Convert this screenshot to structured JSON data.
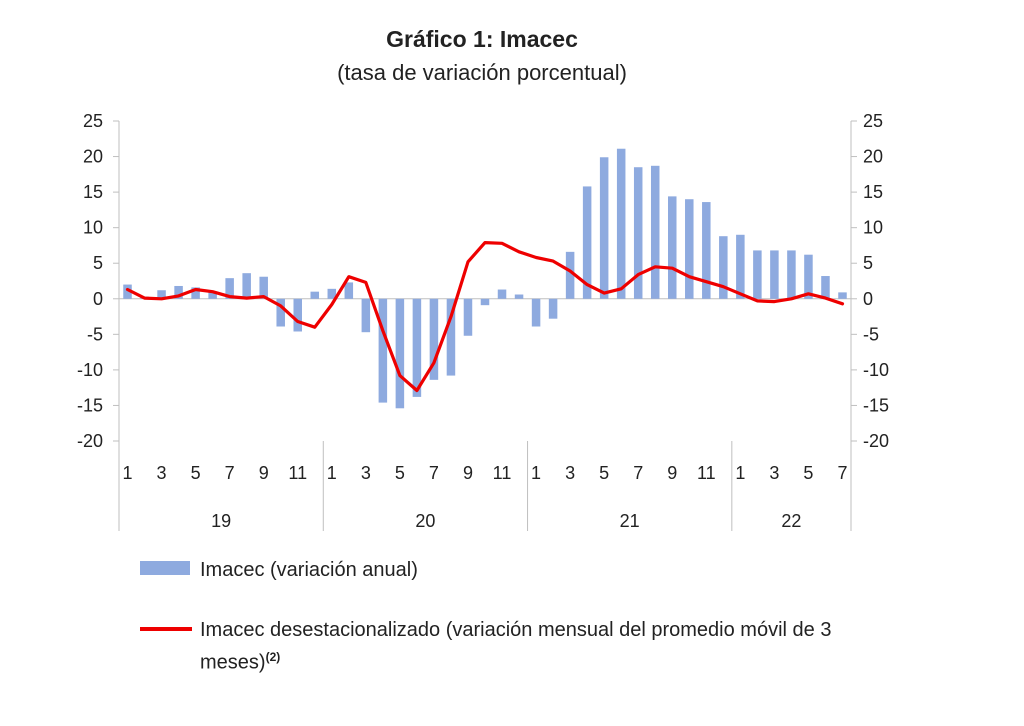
{
  "chart_data": {
    "type": "bar",
    "title": "Gráfico 1: Imacec",
    "subtitle": "(tasa de variación porcentual)",
    "ylim": [
      -20,
      25
    ],
    "y_ticks": [
      "25",
      "20",
      "15",
      "10",
      "5",
      "0",
      "-5",
      "-10",
      "-15",
      "-20"
    ],
    "y2_ticks": [
      "25",
      "20",
      "15",
      "10",
      "5",
      "0",
      "-5",
      "-10",
      "-15",
      "-20"
    ],
    "years": [
      "19",
      "20",
      "21",
      "22"
    ],
    "x_tick_labels": [
      "1",
      "3",
      "5",
      "7",
      "9",
      "11",
      "1",
      "3",
      "5",
      "7",
      "9",
      "11",
      "1",
      "3",
      "5",
      "7",
      "9",
      "11",
      "1",
      "3",
      "5",
      "7"
    ],
    "categories": [
      "2019-01",
      "2019-02",
      "2019-03",
      "2019-04",
      "2019-05",
      "2019-06",
      "2019-07",
      "2019-08",
      "2019-09",
      "2019-10",
      "2019-11",
      "2019-12",
      "2020-01",
      "2020-02",
      "2020-03",
      "2020-04",
      "2020-05",
      "2020-06",
      "2020-07",
      "2020-08",
      "2020-09",
      "2020-10",
      "2020-11",
      "2020-12",
      "2021-01",
      "2021-02",
      "2021-03",
      "2021-04",
      "2021-05",
      "2021-06",
      "2021-07",
      "2021-08",
      "2021-09",
      "2021-10",
      "2021-11",
      "2021-12",
      "2022-01",
      "2022-02",
      "2022-03",
      "2022-04",
      "2022-05",
      "2022-06",
      "2022-07"
    ],
    "series": [
      {
        "name": "Imacec (variación anual)",
        "type": "bar",
        "color": "#8eaadf",
        "values": [
          2.0,
          0.3,
          1.2,
          1.8,
          1.6,
          1.0,
          2.9,
          3.6,
          3.1,
          -3.9,
          -4.6,
          1.0,
          1.4,
          2.3,
          -4.7,
          -14.6,
          -15.4,
          -13.8,
          -11.4,
          -10.8,
          -5.2,
          -0.9,
          1.3,
          0.6,
          -3.9,
          -2.8,
          6.6,
          15.8,
          19.9,
          21.1,
          18.5,
          18.7,
          14.4,
          14.0,
          13.6,
          8.8,
          9.0,
          6.8,
          6.8,
          6.8,
          6.2,
          3.2,
          0.9
        ]
      },
      {
        "name": "Imacec desestacionalizado (variación mensual del promedio móvil de 3 meses)",
        "name_sup": "(2)",
        "type": "line",
        "color": "#ee0000",
        "values": [
          1.3,
          0.1,
          0.0,
          0.4,
          1.3,
          1.0,
          0.3,
          0.1,
          0.3,
          -1.0,
          -3.2,
          -4.0,
          -0.8,
          3.1,
          2.3,
          -4.5,
          -10.8,
          -12.9,
          -9.0,
          -2.5,
          5.2,
          7.9,
          7.8,
          6.6,
          5.8,
          5.3,
          3.9,
          2.0,
          0.8,
          1.4,
          3.4,
          4.5,
          4.3,
          3.1,
          2.4,
          1.7,
          0.7,
          -0.3,
          -0.4,
          0.0,
          0.7,
          0.1,
          -0.7
        ]
      }
    ],
    "grid": false,
    "legend_position": "bottom"
  }
}
